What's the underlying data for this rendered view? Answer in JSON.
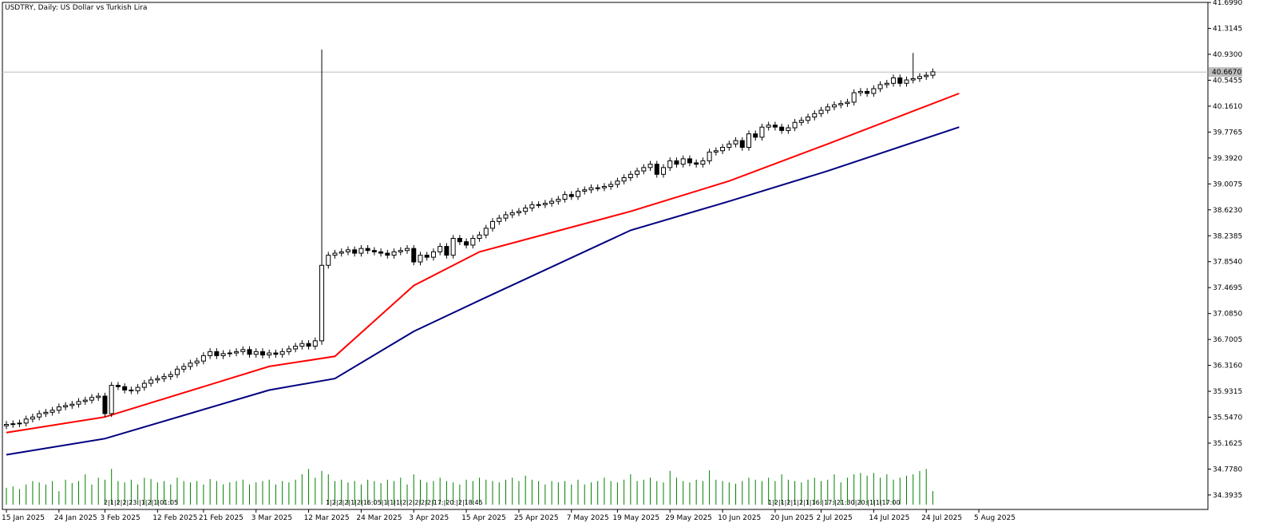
{
  "chart_data": {
    "type": "candlestick",
    "title": "USDTRY, Daily:  US Dollar vs Turkish Lira",
    "symbol": "USDTRY",
    "timeframe": "Daily",
    "description": "US Dollar vs Turkish Lira",
    "current_price": 40.667,
    "current_price_label": "40.6670",
    "y_axis": {
      "range": [
        34.25,
        41.7
      ],
      "ticks": [
        "41.6990",
        "41.3145",
        "40.9300",
        "40.5455",
        "40.1610",
        "39.7765",
        "39.3920",
        "39.0075",
        "38.6230",
        "38.2385",
        "37.8540",
        "37.4695",
        "37.0850",
        "36.7005",
        "36.3160",
        "35.9315",
        "35.5470",
        "35.1625",
        "34.7780",
        "34.3935"
      ]
    },
    "x_axis": {
      "ticks": [
        "15 Jan 2025",
        "24 Jan 2025",
        "3 Feb 2025",
        "12 Feb 2025",
        "21 Feb 2025",
        "3 Mar 2025",
        "12 Mar 2025",
        "24 Mar 2025",
        "3 Apr 2025",
        "15 Apr 2025",
        "25 Apr 2025",
        "7 May 2025",
        "19 May 2025",
        "29 May 2025",
        "10 Jun 2025",
        "20 Jun 2025",
        "2 Jul 2025",
        "14 Jul 2025",
        "24 Jul 2025",
        "5 Aug 2025"
      ]
    },
    "candles": {
      "close": [
        35.44,
        35.45,
        35.46,
        35.52,
        35.55,
        35.6,
        35.62,
        35.65,
        35.7,
        35.72,
        35.74,
        35.78,
        35.8,
        35.84,
        35.86,
        35.6,
        36.02,
        36.0,
        35.95,
        35.94,
        35.99,
        36.05,
        36.1,
        36.12,
        36.15,
        36.18,
        36.26,
        36.3,
        36.35,
        36.38,
        36.46,
        36.52,
        36.46,
        36.49,
        36.5,
        36.52,
        36.55,
        36.48,
        36.52,
        36.47,
        36.5,
        36.48,
        36.52,
        36.56,
        36.6,
        36.64,
        36.6,
        36.68,
        37.8,
        37.95,
        37.98,
        38.0,
        38.03,
        37.98,
        38.05,
        38.02,
        38.0,
        37.98,
        37.95,
        38.0,
        38.02,
        38.05,
        37.85,
        37.95,
        37.92,
        38.0,
        38.08,
        37.95,
        38.2,
        38.15,
        38.1,
        38.2,
        38.25,
        38.35,
        38.45,
        38.5,
        38.55,
        38.58,
        38.6,
        38.65,
        38.7,
        38.7,
        38.72,
        38.75,
        38.78,
        38.85,
        38.82,
        38.9,
        38.92,
        38.95,
        38.95,
        38.97,
        39.0,
        39.05,
        39.1,
        39.15,
        39.2,
        39.25,
        39.3,
        39.15,
        39.25,
        39.35,
        39.3,
        39.38,
        39.32,
        39.3,
        39.35,
        39.48,
        39.5,
        39.55,
        39.6,
        39.65,
        39.55,
        39.75,
        39.7,
        39.85,
        39.88,
        39.85,
        39.8,
        39.84,
        39.92,
        39.95,
        40.0,
        40.05,
        40.1,
        40.15,
        40.18,
        40.2,
        40.22,
        40.36,
        40.38,
        40.35,
        40.42,
        40.48,
        40.5,
        40.58,
        40.5,
        40.55,
        40.57,
        40.6,
        40.62,
        40.67
      ],
      "volume": [
        34.5,
        34.52,
        34.48,
        34.55,
        34.6,
        34.58,
        34.55,
        34.6,
        34.45,
        34.62,
        34.57,
        34.6,
        34.7,
        34.55,
        34.65,
        34.62,
        34.78,
        34.6,
        34.58,
        34.62,
        34.55,
        34.65,
        34.63,
        34.58,
        34.6,
        34.55,
        34.65,
        34.6,
        34.58,
        34.6,
        34.55,
        34.63,
        34.6,
        34.55,
        34.58,
        34.6,
        34.62,
        34.55,
        34.58,
        34.6,
        34.62,
        34.55,
        34.6,
        34.58,
        34.62,
        34.7,
        34.78,
        34.65,
        34.75,
        34.7,
        34.6,
        34.62,
        34.58,
        34.6,
        34.55,
        34.62,
        34.6,
        34.57,
        34.62,
        34.6,
        34.65,
        34.55,
        34.7,
        34.62,
        34.58,
        34.6,
        34.65,
        34.6,
        34.58,
        34.55,
        34.62,
        34.6,
        34.65,
        34.62,
        34.6,
        34.58,
        34.62,
        34.65,
        34.6,
        34.68,
        34.62,
        34.6,
        34.55,
        34.6,
        34.58,
        34.6,
        34.55,
        34.62,
        34.55,
        34.58,
        34.6,
        34.65,
        34.6,
        34.58,
        34.62,
        34.7,
        34.6,
        34.62,
        34.65,
        34.6,
        34.58,
        34.75,
        34.65,
        34.6,
        34.58,
        34.62,
        34.6,
        34.76,
        34.62,
        34.6,
        34.58,
        34.56,
        34.6,
        34.65,
        34.62,
        34.6,
        34.65,
        34.6,
        34.7,
        34.62,
        34.6,
        34.58,
        34.62,
        34.65,
        34.6,
        34.62,
        34.7,
        34.58,
        34.65,
        34.7,
        34.72,
        34.68,
        34.72,
        34.65,
        34.7,
        34.62,
        34.65,
        34.68,
        34.7,
        34.75,
        34.78,
        34.45
      ]
    },
    "series": [
      {
        "name": "",
        "color": "#ff0000",
        "points": [
          [
            0,
            35.32
          ],
          [
            15,
            35.55
          ],
          [
            40,
            36.3
          ],
          [
            50,
            36.45
          ],
          [
            62,
            37.5
          ],
          [
            72,
            38.0
          ],
          [
            95,
            38.6
          ],
          [
            110,
            39.05
          ],
          [
            125,
            39.6
          ],
          [
            145,
            40.35
          ]
        ]
      },
      {
        "name": "",
        "color": "#000080",
        "points": [
          [
            0,
            34.99
          ],
          [
            15,
            35.23
          ],
          [
            40,
            35.95
          ],
          [
            50,
            36.12
          ],
          [
            62,
            36.82
          ],
          [
            72,
            37.28
          ],
          [
            95,
            38.32
          ],
          [
            110,
            38.75
          ],
          [
            125,
            39.2
          ],
          [
            145,
            39.85
          ]
        ]
      }
    ],
    "session_tags": [
      {
        "text": "2|1|2|2|23:|1|2|1|01:05",
        "x": 130
      },
      {
        "text": "1|2|2|2|1|2|16:05|1|1|1|2|2|2|2|2|17:|20:|2|18:45",
        "x": 408
      },
      {
        "text": "1|2|1|2|1|2|1|16:|17:|21:30|20:|1|1|17:00",
        "x": 962
      }
    ]
  }
}
